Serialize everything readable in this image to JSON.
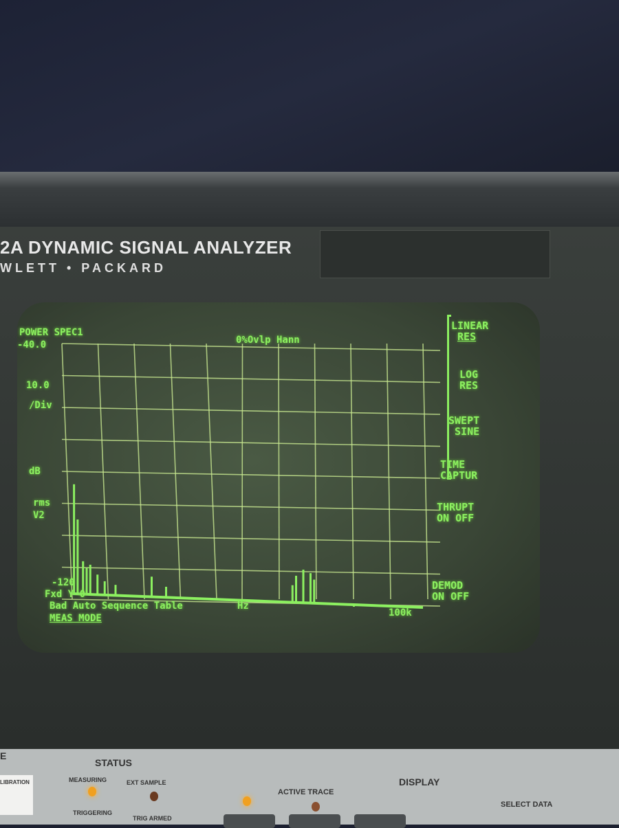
{
  "instrument": {
    "model_line": "2A DYNAMIC SIGNAL ANALYZER",
    "maker_line": "WLETT • PACKARD"
  },
  "screen": {
    "title": "POWER SPEC1",
    "window_info": "0%Ovlp Hann",
    "y_top": "-40.0",
    "scale": "10.0",
    "scale_unit": "/Div",
    "unit1": "dB",
    "unit2": "rms",
    "unit3": "V2",
    "y_bottom": "-120",
    "status_line": "Fxd Y 0",
    "message": "Bad Auto Sequence Table",
    "menu_name": "MEAS MODE",
    "x_unit": "Hz",
    "x_end": "100k",
    "softkeys": [
      {
        "line1": "LINEAR",
        "line2": "RES",
        "selected": true
      },
      {
        "line1": "LOG",
        "line2": "RES"
      },
      {
        "line1": "SWEPT",
        "line2": "SINE"
      },
      {
        "line1": "TIME",
        "line2": "CAPTUR"
      },
      {
        "line1": "THRUPT",
        "line2": "ON OFF"
      },
      {
        "line1": "DEMOD",
        "line2": "ON OFF"
      }
    ],
    "trace_color": "#8cf060"
  },
  "chart_data": {
    "type": "bar",
    "title": "POWER SPEC1",
    "xlabel": "Hz",
    "ylabel": "dB rms V2",
    "xlim": [
      0,
      100000
    ],
    "ylim": [
      -120,
      -40
    ],
    "grid": true,
    "x": [
      500,
      1500,
      3000,
      4000,
      5000,
      7000,
      9000,
      12000,
      22000,
      26000,
      45000,
      55000,
      61000,
      62000,
      64000,
      66000,
      67000,
      78000
    ],
    "values": [
      -84,
      -95,
      -108,
      -110,
      -109,
      -112,
      -114,
      -115,
      -112,
      -115,
      -118,
      -118,
      -113,
      -110,
      -108,
      -109,
      -111,
      -119
    ]
  },
  "front_panel": {
    "status_title": "STATUS",
    "measuring": "MEASURING",
    "ext_sample": "EXT SAMPLE",
    "triggering": "TRIGGERING",
    "trig_armed": "TRIG ARMED",
    "display_title": "DISPLAY",
    "active_trace": "ACTIVE TRACE",
    "select_data": "SELECT DATA",
    "calibration": "LIBRATION"
  }
}
